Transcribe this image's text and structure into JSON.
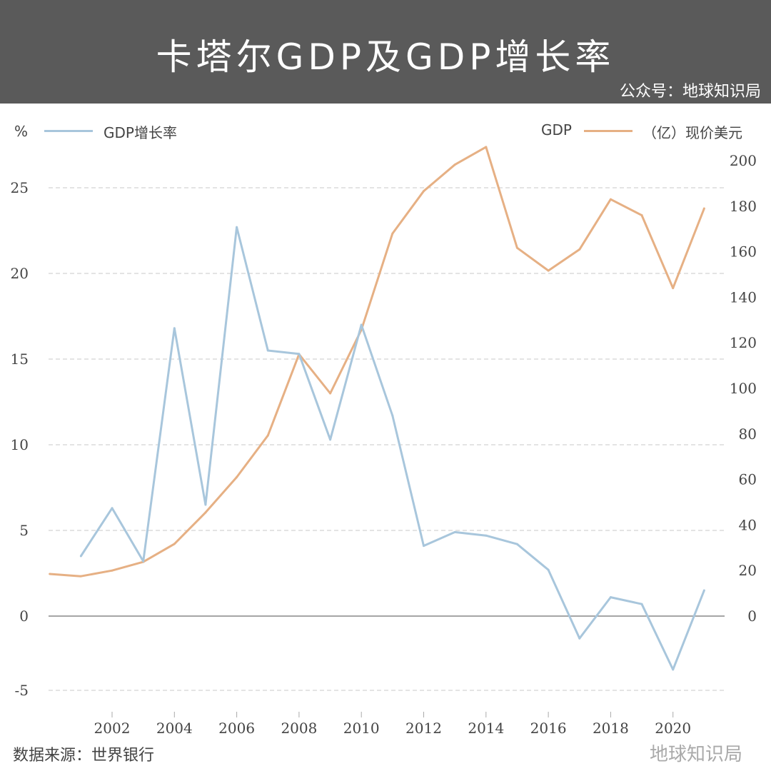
{
  "header": {
    "title": "卡塔尔GDP及GDP增长率",
    "subtitle": "公众号：地球知识局"
  },
  "legend": {
    "left_unit": "%",
    "left_series": "GDP增长率",
    "right_prefix": "GDP",
    "right_series": "（亿）现价美元"
  },
  "footer": {
    "source": "数据来源：世界银行",
    "watermark": "地球知识局"
  },
  "colors": {
    "growth": "#a8c6dc",
    "gdp": "#e6b084",
    "header_bg": "#5a5a5a"
  },
  "chart_data": {
    "type": "line",
    "title": "卡塔尔GDP及GDP增长率",
    "x_ticks": [
      "2002",
      "2004",
      "2006",
      "2008",
      "2010",
      "2012",
      "2014",
      "2016",
      "2018",
      "2020"
    ],
    "left_axis": {
      "label": "%",
      "ticks": [
        "-5",
        "0",
        "5",
        "10",
        "15",
        "20",
        "25"
      ],
      "range": [
        -5,
        27
      ]
    },
    "right_axis": {
      "label": "（亿）现价美元",
      "ticks": [
        "0",
        "20",
        "40",
        "60",
        "80",
        "100",
        "120",
        "140",
        "160",
        "180",
        "200"
      ],
      "range": [
        0,
        205
      ]
    },
    "grid": true,
    "legend_placement": "top",
    "series": [
      {
        "name": "GDP增长率",
        "axis": "left",
        "x": [
          2001,
          2002,
          2003,
          2004,
          2005,
          2006,
          2007,
          2008,
          2009,
          2010,
          2011,
          2012,
          2013,
          2014,
          2015,
          2016,
          2017,
          2018,
          2019,
          2020,
          2021
        ],
        "values": [
          3.5,
          6.3,
          3.2,
          16.8,
          6.5,
          22.7,
          15.5,
          15.3,
          10.3,
          17.0,
          11.7,
          4.1,
          4.9,
          4.7,
          4.2,
          2.7,
          -1.5,
          1.1,
          0.7,
          -3.6,
          1.5
        ]
      },
      {
        "name": "GDP",
        "axis": "right",
        "x": [
          2000,
          2001,
          2002,
          2003,
          2004,
          2005,
          2006,
          2007,
          2008,
          2009,
          2010,
          2011,
          2012,
          2013,
          2014,
          2015,
          2016,
          2017,
          2018,
          2019,
          2020,
          2021
        ],
        "values": [
          18.5,
          17.5,
          20,
          23.8,
          31.7,
          45.5,
          61,
          79.3,
          115,
          97.8,
          125.7,
          168,
          186.6,
          198.2,
          206,
          161.7,
          151.7,
          161,
          183,
          176,
          144,
          179
        ]
      }
    ]
  }
}
